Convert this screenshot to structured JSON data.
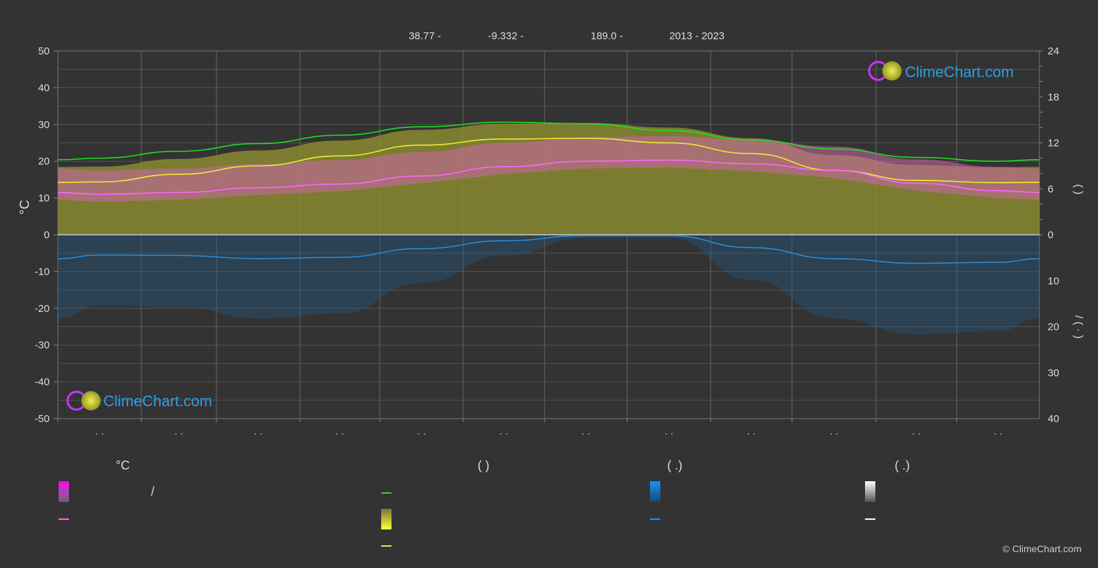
{
  "header": {
    "lat": "38.77 -",
    "lon": "-9.332 -",
    "elev": "189.0 -",
    "years": "2013 - 2023"
  },
  "legend": {
    "col1_title": "°C",
    "col1_slash": "/",
    "col2_title": "(          )",
    "col3_title": "(    .)",
    "col4_title": "(    .)"
  },
  "copyright": "© ClimeChart.com",
  "chart_data": {
    "type": "area",
    "months": [
      "· ·",
      "· ·",
      "· ·",
      "· ·",
      "· ·",
      "· ·",
      "· ·",
      "· ·",
      "· ·",
      "· ·",
      "· ·",
      "· ·"
    ],
    "yleft_label": "°C",
    "yleft_ticks": [
      50,
      40,
      30,
      20,
      10,
      0,
      -10,
      -20,
      -30,
      -40,
      -50
    ],
    "yleft_range": [
      -50,
      50
    ],
    "yright_top_ticks": [
      24,
      18,
      12,
      6,
      0
    ],
    "yright_bottom_ticks": [
      10,
      20,
      30,
      40
    ],
    "yright_label_top": "(    )",
    "yright_label_bottom": "/   (  ·  )",
    "grid": true,
    "series": [
      {
        "key": "daylight",
        "unit": "hours",
        "color": "#22dd22",
        "values": [
          10.0,
          10.9,
          11.9,
          13.0,
          14.1,
          14.7,
          14.5,
          13.6,
          12.4,
          11.2,
          10.1,
          9.6
        ]
      },
      {
        "key": "sunshine",
        "unit": "hours",
        "color": "#eeee33",
        "values": [
          6.9,
          7.9,
          9.0,
          10.3,
          11.7,
          12.5,
          12.6,
          12.0,
          10.6,
          8.4,
          7.1,
          6.8
        ]
      },
      {
        "key": "mean_temp",
        "unit": "°C",
        "color": "#ff66ff",
        "values": [
          11.0,
          11.5,
          12.8,
          13.8,
          16.0,
          18.5,
          20.0,
          20.3,
          19.3,
          17.5,
          14.0,
          12.0
        ]
      },
      {
        "key": "precip_rain",
        "unit": "mm",
        "color": "#2a8cd8",
        "values": [
          4.4,
          4.5,
          5.2,
          4.9,
          3.0,
          1.3,
          0.2,
          0.2,
          2.8,
          5.2,
          6.2,
          6.0
        ]
      }
    ]
  }
}
